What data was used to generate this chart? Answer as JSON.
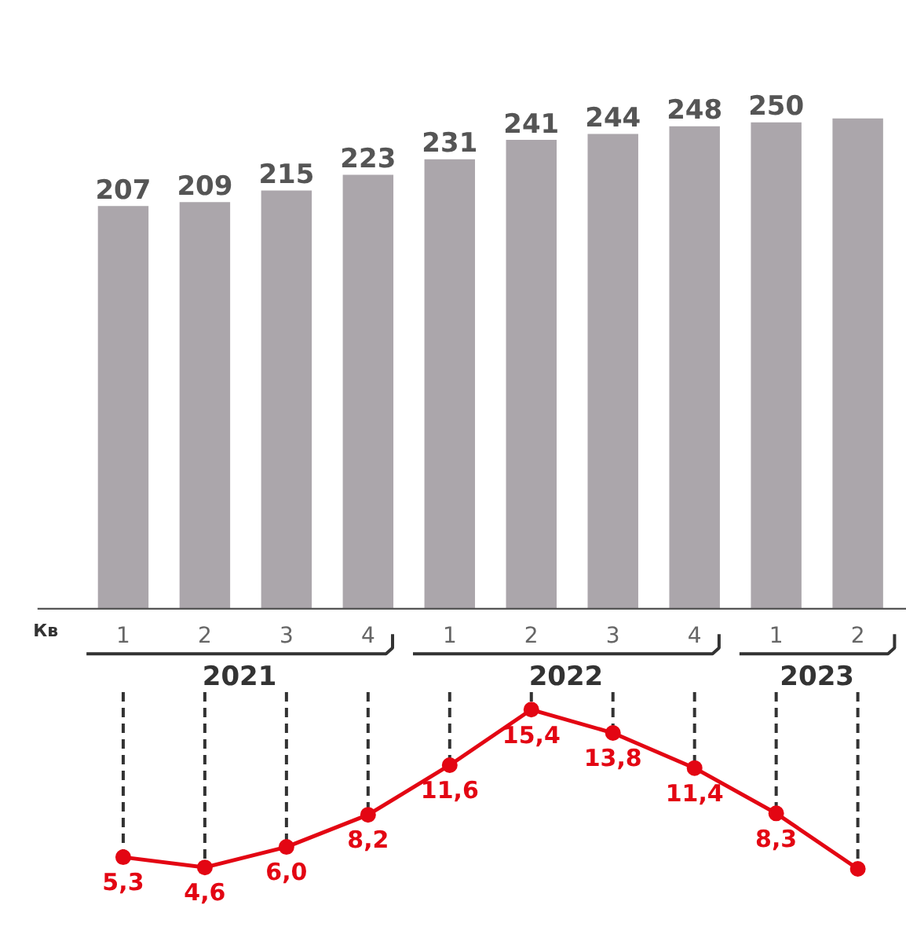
{
  "chart_data": [
    {
      "type": "bar",
      "xlabel": "Кв",
      "categories": [
        "1",
        "2",
        "3",
        "4",
        "1",
        "2",
        "3",
        "4",
        "1",
        "2"
      ],
      "series": [
        {
          "color": "#aba6ab",
          "values": [
            207,
            209,
            215,
            223,
            231,
            241,
            244,
            248,
            250,
            252
          ],
          "value_labels": [
            "207",
            "209",
            "215",
            "223",
            "231",
            "241",
            "244",
            "248",
            "250",
            null
          ]
        }
      ],
      "annotations": [
        "2021",
        "2022",
        "2023"
      ]
    },
    {
      "type": "line",
      "categories": [
        "1",
        "2",
        "3",
        "4",
        "1",
        "2",
        "3",
        "4",
        "1",
        "2"
      ],
      "tick_labels": false,
      "grid": "x",
      "marker": "circle",
      "line_style": "solid",
      "series": [
        {
          "color": "#e30613",
          "values": [
            5.3,
            4.6,
            6.0,
            8.2,
            11.6,
            15.4,
            13.8,
            11.4,
            8.3,
            4.5
          ],
          "value_labels": [
            "5,3",
            "4,6",
            "6,0",
            "8,2",
            "11,6",
            "15,4",
            "13,8",
            "11,4",
            "8,3",
            null
          ]
        }
      ]
    }
  ]
}
